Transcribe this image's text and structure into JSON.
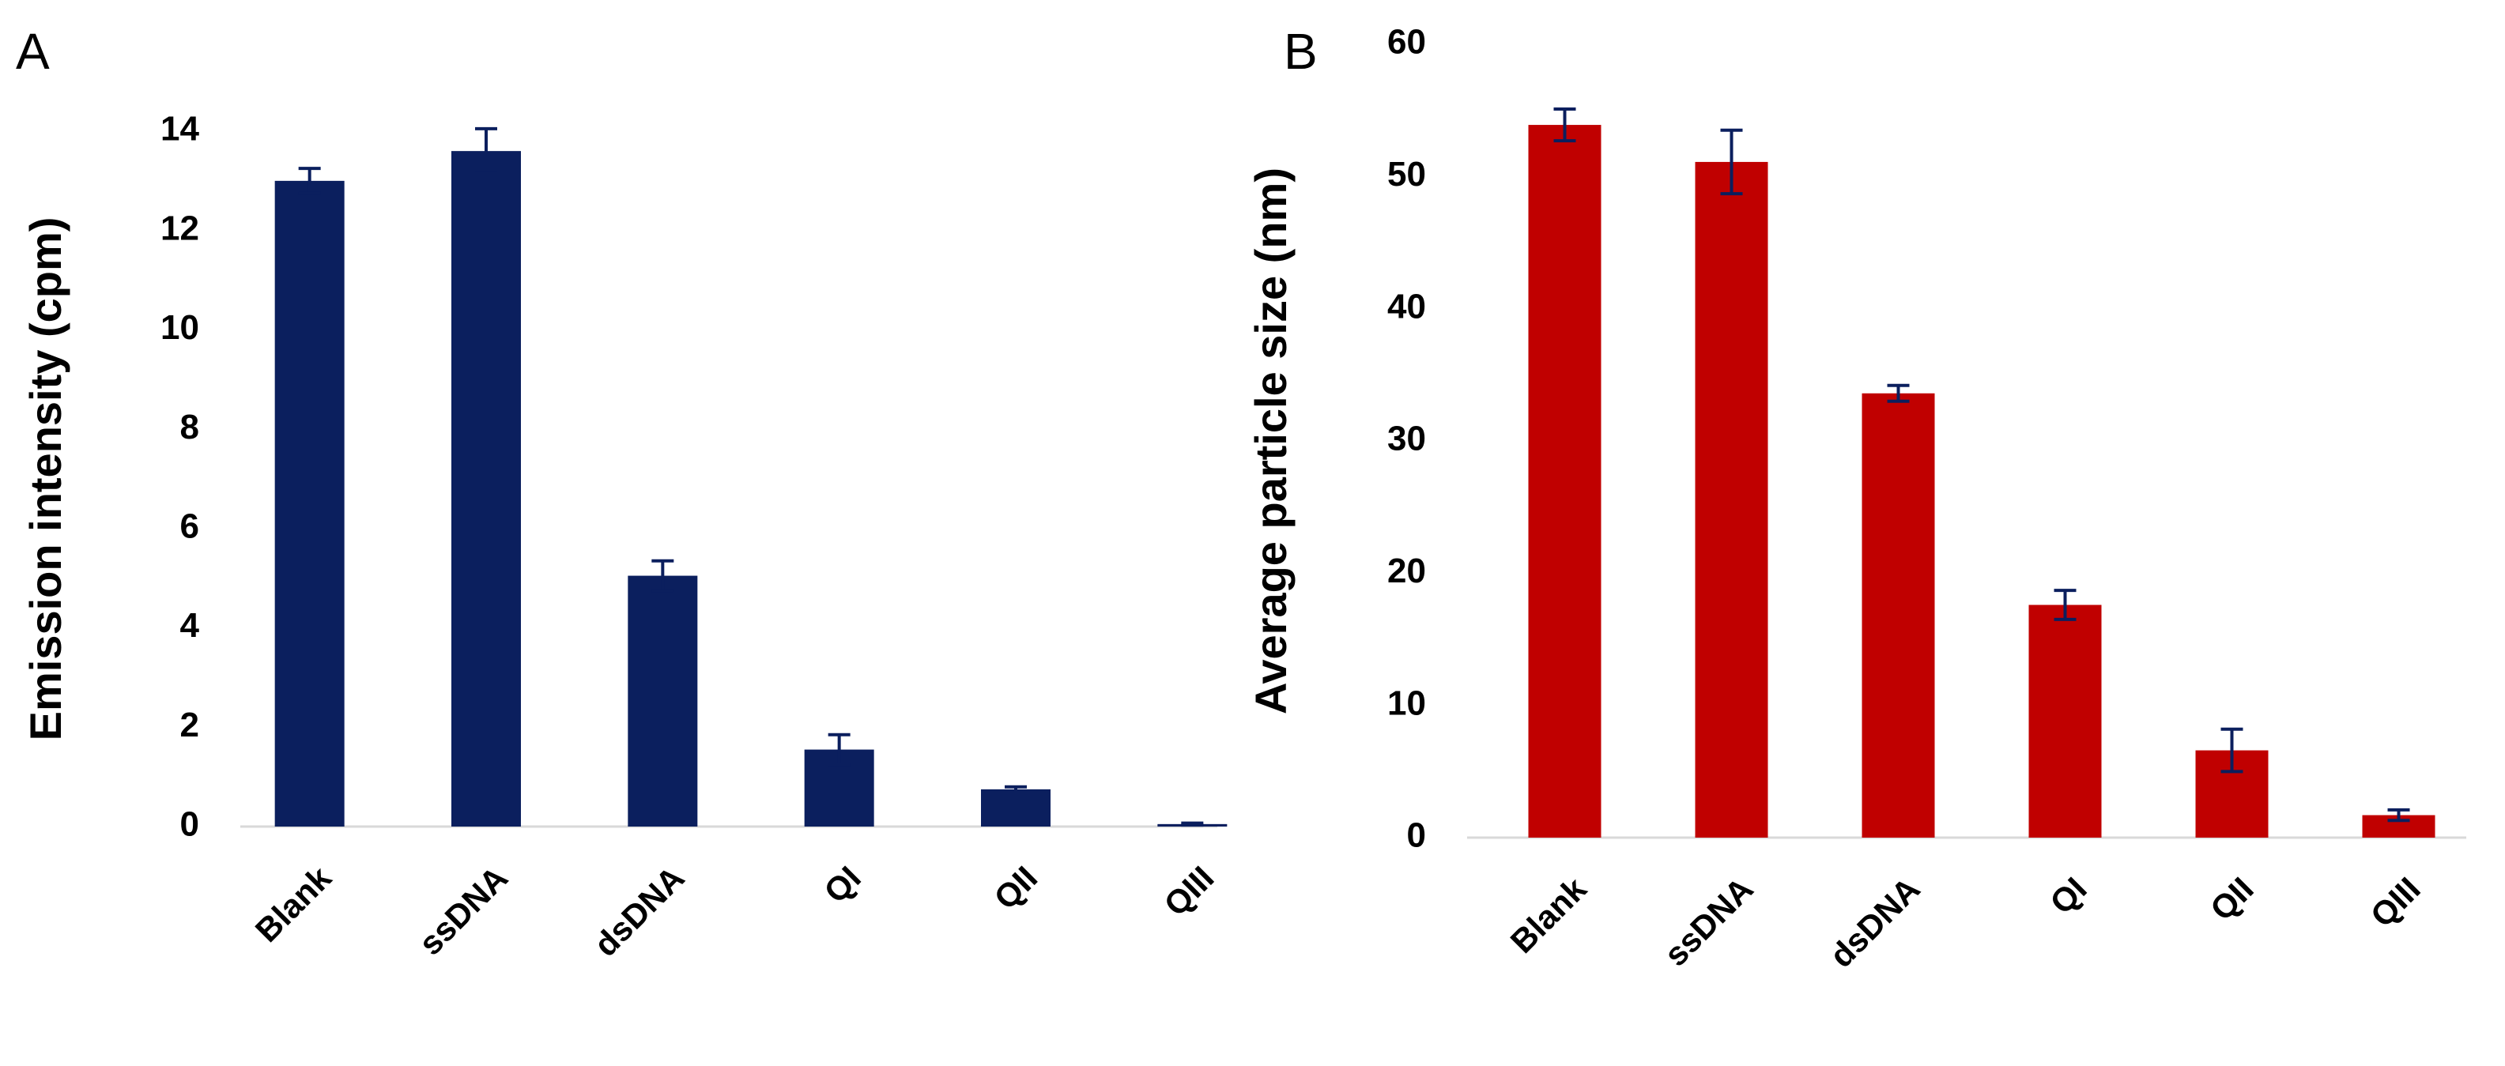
{
  "chart_data": [
    {
      "type": "bar",
      "panel_label": "A",
      "y_label": "Emission intensity (cpm)",
      "categories": [
        "Blank",
        "ssDNA",
        "dsDNA",
        "QI",
        "QII",
        "QIII"
      ],
      "values": [
        13.0,
        13.6,
        5.05,
        1.55,
        0.75,
        0.05
      ],
      "errors": [
        0.25,
        0.45,
        0.3,
        0.3,
        0.05,
        0.02
      ],
      "color": "#0b1f5e",
      "error_color": "#0b1f5e",
      "ylim": [
        0,
        14
      ],
      "yticks": [
        0,
        2,
        4,
        6,
        8,
        10,
        12,
        14
      ]
    },
    {
      "type": "bar",
      "panel_label": "B",
      "y_label": "Average particle size (nm)",
      "categories": [
        "Blank",
        "ssDNA",
        "dsDNA",
        "QI",
        "QII",
        "QIII"
      ],
      "values": [
        53.9,
        51.1,
        33.6,
        17.6,
        6.6,
        1.7
      ],
      "errors": [
        1.2,
        2.4,
        0.6,
        1.1,
        1.6,
        0.4
      ],
      "color": "#c00000",
      "error_color": "#0b1f5e",
      "ylim": [
        0,
        60
      ],
      "yticks": [
        0,
        10,
        20,
        30,
        40,
        50,
        60
      ]
    }
  ]
}
